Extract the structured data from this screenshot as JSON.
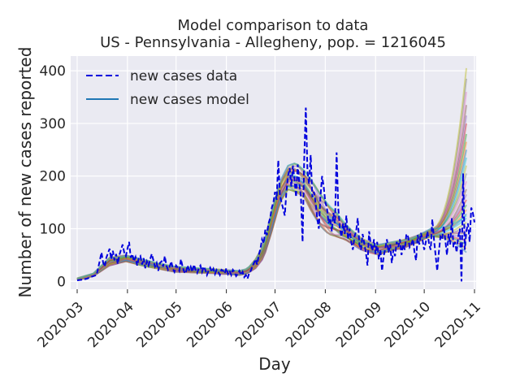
{
  "chart_data": {
    "type": "line",
    "title_line1": "Model comparison to data",
    "title_line2": "US - Pennsylvania - Allegheny, pop. = 1216045",
    "xlabel": "Day",
    "ylabel": "Number of new cases reported",
    "x_ticks": [
      "2020-03",
      "2020-04",
      "2020-05",
      "2020-06",
      "2020-07",
      "2020-08",
      "2020-09",
      "2020-10",
      "2020-11"
    ],
    "x_tick_days": [
      0,
      31,
      61,
      92,
      122,
      153,
      184,
      214,
      245
    ],
    "xlim_days": [
      -4,
      246
    ],
    "y_ticks": [
      0,
      100,
      200,
      300,
      400
    ],
    "ylim": [
      -15,
      428
    ],
    "grid": true,
    "legend": {
      "placement": "top-left",
      "entries": [
        {
          "label": "new cases data",
          "style": "dashed",
          "color": "#0000dd"
        },
        {
          "label": "new cases model",
          "style": "solid",
          "color": "#1f77b4"
        }
      ]
    },
    "data_series": {
      "name": "new cases data",
      "color": "#0000dd",
      "points": [
        [
          0,
          2
        ],
        [
          3,
          3
        ],
        [
          6,
          5
        ],
        [
          9,
          9
        ],
        [
          12,
          12
        ],
        [
          14,
          40
        ],
        [
          15,
          55
        ],
        [
          16,
          36
        ],
        [
          17,
          28
        ],
        [
          18,
          45
        ],
        [
          20,
          62
        ],
        [
          21,
          42
        ],
        [
          22,
          58
        ],
        [
          23,
          40
        ],
        [
          24,
          52
        ],
        [
          25,
          33
        ],
        [
          26,
          50
        ],
        [
          27,
          60
        ],
        [
          28,
          70
        ],
        [
          29,
          55
        ],
        [
          30,
          48
        ],
        [
          31,
          62
        ],
        [
          32,
          75
        ],
        [
          33,
          45
        ],
        [
          34,
          52
        ],
        [
          35,
          38
        ],
        [
          36,
          46
        ],
        [
          37,
          30
        ],
        [
          38,
          44
        ],
        [
          39,
          48
        ],
        [
          40,
          32
        ],
        [
          41,
          44
        ],
        [
          42,
          25
        ],
        [
          43,
          38
        ],
        [
          44,
          30
        ],
        [
          45,
          42
        ],
        [
          46,
          52
        ],
        [
          47,
          40
        ],
        [
          48,
          28
        ],
        [
          49,
          35
        ],
        [
          50,
          20
        ],
        [
          51,
          35
        ],
        [
          52,
          38
        ],
        [
          53,
          28
        ],
        [
          54,
          48
        ],
        [
          55,
          30
        ],
        [
          56,
          22
        ],
        [
          57,
          28
        ],
        [
          58,
          38
        ],
        [
          59,
          24
        ],
        [
          60,
          18
        ],
        [
          61,
          30
        ],
        [
          62,
          26
        ],
        [
          63,
          20
        ],
        [
          64,
          42
        ],
        [
          65,
          28
        ],
        [
          66,
          18
        ],
        [
          67,
          15
        ],
        [
          68,
          30
        ],
        [
          69,
          22
        ],
        [
          70,
          28
        ],
        [
          71,
          18
        ],
        [
          72,
          32
        ],
        [
          73,
          22
        ],
        [
          74,
          16
        ],
        [
          75,
          25
        ],
        [
          76,
          30
        ],
        [
          77,
          18
        ],
        [
          78,
          28
        ],
        [
          79,
          22
        ],
        [
          80,
          12
        ],
        [
          81,
          20
        ],
        [
          82,
          26
        ],
        [
          83,
          18
        ],
        [
          84,
          24
        ],
        [
          85,
          14
        ],
        [
          86,
          22
        ],
        [
          87,
          18
        ],
        [
          88,
          12
        ],
        [
          89,
          22
        ],
        [
          90,
          20
        ],
        [
          91,
          15
        ],
        [
          92,
          25
        ],
        [
          93,
          14
        ],
        [
          94,
          20
        ],
        [
          95,
          12
        ],
        [
          96,
          22
        ],
        [
          97,
          18
        ],
        [
          98,
          10
        ],
        [
          99,
          14
        ],
        [
          100,
          20
        ],
        [
          101,
          12
        ],
        [
          102,
          18
        ],
        [
          103,
          8
        ],
        [
          104,
          12
        ],
        [
          105,
          5
        ],
        [
          106,
          15
        ],
        [
          107,
          20
        ],
        [
          108,
          28
        ],
        [
          109,
          35
        ],
        [
          110,
          42
        ],
        [
          111,
          32
        ],
        [
          112,
          50
        ],
        [
          113,
          62
        ],
        [
          114,
          80
        ],
        [
          115,
          72
        ],
        [
          116,
          98
        ],
        [
          117,
          88
        ],
        [
          118,
          110
        ],
        [
          119,
          120
        ],
        [
          120,
          140
        ],
        [
          121,
          150
        ],
        [
          122,
          170
        ],
        [
          123,
          155
        ],
        [
          124,
          230
        ],
        [
          125,
          165
        ],
        [
          126,
          150
        ],
        [
          127,
          138
        ],
        [
          128,
          125
        ],
        [
          129,
          170
        ],
        [
          130,
          200
        ],
        [
          131,
          215
        ],
        [
          132,
          180
        ],
        [
          133,
          220
        ],
        [
          134,
          195
        ],
        [
          135,
          160
        ],
        [
          136,
          222
        ],
        [
          137,
          185
        ],
        [
          138,
          160
        ],
        [
          139,
          75
        ],
        [
          140,
          232
        ],
        [
          141,
          330
        ],
        [
          142,
          210
        ],
        [
          143,
          185
        ],
        [
          144,
          240
        ],
        [
          145,
          160
        ],
        [
          146,
          170
        ],
        [
          147,
          150
        ],
        [
          148,
          120
        ],
        [
          149,
          100
        ],
        [
          150,
          160
        ],
        [
          151,
          200
        ],
        [
          152,
          180
        ],
        [
          153,
          150
        ],
        [
          154,
          140
        ],
        [
          155,
          110
        ],
        [
          156,
          120
        ],
        [
          157,
          95
        ],
        [
          158,
          130
        ],
        [
          159,
          110
        ],
        [
          160,
          245
        ],
        [
          161,
          140
        ],
        [
          162,
          100
        ],
        [
          163,
          85
        ],
        [
          164,
          110
        ],
        [
          165,
          90
        ],
        [
          166,
          125
        ],
        [
          167,
          80
        ],
        [
          168,
          100
        ],
        [
          169,
          75
        ],
        [
          170,
          60
        ],
        [
          171,
          85
        ],
        [
          172,
          95
        ],
        [
          173,
          120
        ],
        [
          174,
          70
        ],
        [
          175,
          60
        ],
        [
          176,
          90
        ],
        [
          177,
          72
        ],
        [
          178,
          55
        ],
        [
          179,
          30
        ],
        [
          180,
          95
        ],
        [
          181,
          70
        ],
        [
          182,
          58
        ],
        [
          183,
          80
        ],
        [
          184,
          52
        ],
        [
          185,
          75
        ],
        [
          186,
          42
        ],
        [
          187,
          60
        ],
        [
          188,
          20
        ],
        [
          189,
          48
        ],
        [
          190,
          62
        ],
        [
          191,
          80
        ],
        [
          192,
          55
        ],
        [
          193,
          70
        ],
        [
          194,
          35
        ],
        [
          195,
          60
        ],
        [
          196,
          48
        ],
        [
          197,
          75
        ],
        [
          198,
          65
        ],
        [
          199,
          80
        ],
        [
          200,
          50
        ],
        [
          201,
          70
        ],
        [
          202,
          60
        ],
        [
          203,
          90
        ],
        [
          204,
          85
        ],
        [
          205,
          65
        ],
        [
          206,
          70
        ],
        [
          207,
          80
        ],
        [
          208,
          55
        ],
        [
          209,
          40
        ],
        [
          210,
          88
        ],
        [
          211,
          70
        ],
        [
          212,
          92
        ],
        [
          213,
          78
        ],
        [
          214,
          60
        ],
        [
          215,
          75
        ],
        [
          216,
          95
        ],
        [
          217,
          70
        ],
        [
          218,
          60
        ],
        [
          219,
          118
        ],
        [
          220,
          80
        ],
        [
          221,
          50
        ],
        [
          222,
          20
        ],
        [
          223,
          55
        ],
        [
          224,
          85
        ],
        [
          225,
          80
        ],
        [
          226,
          105
        ],
        [
          227,
          78
        ],
        [
          228,
          50
        ],
        [
          229,
          90
        ],
        [
          230,
          70
        ],
        [
          231,
          120
        ],
        [
          232,
          65
        ],
        [
          233,
          75
        ],
        [
          234,
          55
        ],
        [
          235,
          85
        ],
        [
          236,
          100
        ],
        [
          237,
          0
        ],
        [
          238,
          205
        ],
        [
          239,
          60
        ],
        [
          240,
          95
        ],
        [
          241,
          110
        ],
        [
          242,
          75
        ],
        [
          243,
          140
        ],
        [
          244,
          130
        ],
        [
          245,
          112
        ]
      ]
    },
    "model_ensemble": {
      "name": "new cases model",
      "description_count": 30,
      "colors": [
        "#1f77b4",
        "#ff7f0e",
        "#2ca02c",
        "#d62728",
        "#9467bd",
        "#8c564b",
        "#e377c2",
        "#7f7f7f",
        "#bcbd22",
        "#17becf"
      ],
      "envelope_days": [
        0,
        10,
        20,
        30,
        40,
        50,
        60,
        70,
        80,
        90,
        100,
        105,
        110,
        115,
        120,
        125,
        130,
        135,
        140,
        145,
        150,
        155,
        160,
        165,
        170,
        175,
        180,
        185,
        190,
        195,
        200,
        205,
        210,
        215,
        218
      ],
      "envelope_low": [
        2,
        10,
        30,
        38,
        30,
        24,
        18,
        17,
        16,
        14,
        12,
        15,
        25,
        45,
        95,
        150,
        175,
        170,
        160,
        130,
        105,
        90,
        85,
        80,
        70,
        60,
        55,
        50,
        55,
        60,
        62,
        68,
        75,
        82,
        85
      ],
      "envelope_high": [
        6,
        15,
        45,
        50,
        42,
        34,
        28,
        26,
        24,
        22,
        20,
        24,
        42,
        70,
        135,
        190,
        220,
        225,
        210,
        190,
        165,
        145,
        130,
        110,
        95,
        82,
        75,
        70,
        72,
        75,
        78,
        82,
        88,
        95,
        100
      ],
      "fan_end_day": 240,
      "fan_end_values": [
        55,
        62,
        70,
        78,
        85,
        92,
        98,
        105,
        112,
        120,
        128,
        136,
        145,
        155,
        165,
        175,
        190,
        205,
        220,
        235,
        250,
        265,
        280,
        300,
        315,
        335,
        360,
        385,
        405,
        125
      ]
    }
  }
}
